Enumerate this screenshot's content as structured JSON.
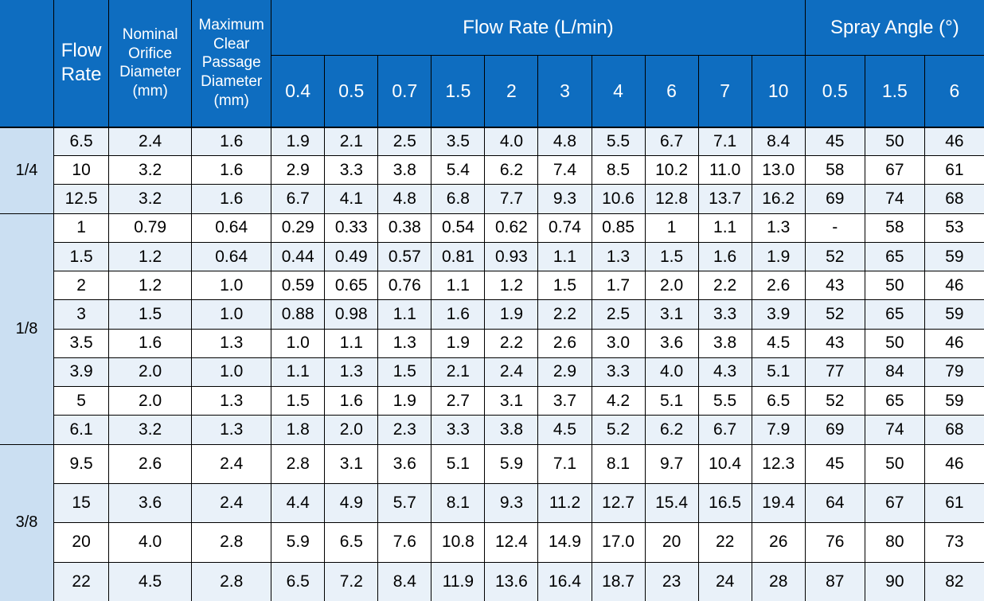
{
  "colors": {
    "header_bg": "#0E6DC0",
    "header_text": "#FFFFFF",
    "row_alt_bg": "#E9F1F9",
    "row_plain_bg": "#FFFFFF",
    "group_col_bg": "#CBDFF2",
    "grid_line": "#000000",
    "data_text": "#000000"
  },
  "header": {
    "corner": "",
    "flow_rate_col": "Flow Rate",
    "nominal_orifice_col": "Nominal Orifice Diameter (mm)",
    "max_clear_col": "Maximum Clear Passage Diameter (mm)",
    "flow_rate_group": "Flow Rate (L/min)",
    "flow_subcols": [
      "0.4",
      "0.5",
      "0.7",
      "1.5",
      "2",
      "3",
      "4",
      "6",
      "7",
      "10"
    ],
    "spray_angle_group": "Spray Angle (°)",
    "spray_subcols": [
      "0.5",
      "1.5",
      "6"
    ]
  },
  "groups": [
    {
      "label": "1/4",
      "rows": [
        {
          "flow_rate": "6.5",
          "nominal": "2.4",
          "max_clear": "1.6",
          "flow": [
            "1.9",
            "2.1",
            "2.5",
            "3.5",
            "4.0",
            "4.8",
            "5.5",
            "6.7",
            "7.1",
            "8.4"
          ],
          "spray": [
            "45",
            "50",
            "46"
          ]
        },
        {
          "flow_rate": "10",
          "nominal": "3.2",
          "max_clear": "1.6",
          "flow": [
            "2.9",
            "3.3",
            "3.8",
            "5.4",
            "6.2",
            "7.4",
            "8.5",
            "10.2",
            "11.0",
            "13.0"
          ],
          "spray": [
            "58",
            "67",
            "61"
          ]
        },
        {
          "flow_rate": "12.5",
          "nominal": "3.2",
          "max_clear": "1.6",
          "flow": [
            "6.7",
            "4.1",
            "4.8",
            "6.8",
            "7.7",
            "9.3",
            "10.6",
            "12.8",
            "13.7",
            "16.2"
          ],
          "spray": [
            "69",
            "74",
            "68"
          ]
        }
      ]
    },
    {
      "label": "1/8",
      "rows": [
        {
          "flow_rate": "1",
          "nominal": "0.79",
          "max_clear": "0.64",
          "flow": [
            "0.29",
            "0.33",
            "0.38",
            "0.54",
            "0.62",
            "0.74",
            "0.85",
            "1",
            "1.1",
            "1.3"
          ],
          "spray": [
            "-",
            "58",
            "53"
          ]
        },
        {
          "flow_rate": "1.5",
          "nominal": "1.2",
          "max_clear": "0.64",
          "flow": [
            "0.44",
            "0.49",
            "0.57",
            "0.81",
            "0.93",
            "1.1",
            "1.3",
            "1.5",
            "1.6",
            "1.9"
          ],
          "spray": [
            "52",
            "65",
            "59"
          ]
        },
        {
          "flow_rate": "2",
          "nominal": "1.2",
          "max_clear": "1.0",
          "flow": [
            "0.59",
            "0.65",
            "0.76",
            "1.1",
            "1.2",
            "1.5",
            "1.7",
            "2.0",
            "2.2",
            "2.6"
          ],
          "spray": [
            "43",
            "50",
            "46"
          ]
        },
        {
          "flow_rate": "3",
          "nominal": "1.5",
          "max_clear": "1.0",
          "flow": [
            "0.88",
            "0.98",
            "1.1",
            "1.6",
            "1.9",
            "2.2",
            "2.5",
            "3.1",
            "3.3",
            "3.9"
          ],
          "spray": [
            "52",
            "65",
            "59"
          ]
        },
        {
          "flow_rate": "3.5",
          "nominal": "1.6",
          "max_clear": "1.3",
          "flow": [
            "1.0",
            "1.1",
            "1.3",
            "1.9",
            "2.2",
            "2.6",
            "3.0",
            "3.6",
            "3.8",
            "4.5"
          ],
          "spray": [
            "43",
            "50",
            "46"
          ]
        },
        {
          "flow_rate": "3.9",
          "nominal": "2.0",
          "max_clear": "1.0",
          "flow": [
            "1.1",
            "1.3",
            "1.5",
            "2.1",
            "2.4",
            "2.9",
            "3.3",
            "4.0",
            "4.3",
            "5.1"
          ],
          "spray": [
            "77",
            "84",
            "79"
          ]
        },
        {
          "flow_rate": "5",
          "nominal": "2.0",
          "max_clear": "1.3",
          "flow": [
            "1.5",
            "1.6",
            "1.9",
            "2.7",
            "3.1",
            "3.7",
            "4.2",
            "5.1",
            "5.5",
            "6.5"
          ],
          "spray": [
            "52",
            "65",
            "59"
          ]
        },
        {
          "flow_rate": "6.1",
          "nominal": "3.2",
          "max_clear": "1.3",
          "flow": [
            "1.8",
            "2.0",
            "2.3",
            "3.3",
            "3.8",
            "4.5",
            "5.2",
            "6.2",
            "6.7",
            "7.9"
          ],
          "spray": [
            "69",
            "74",
            "68"
          ]
        }
      ]
    },
    {
      "label": "3/8",
      "rows": [
        {
          "flow_rate": "9.5",
          "nominal": "2.6",
          "max_clear": "2.4",
          "flow": [
            "2.8",
            "3.1",
            "3.6",
            "5.1",
            "5.9",
            "7.1",
            "8.1",
            "9.7",
            "10.4",
            "12.3"
          ],
          "spray": [
            "45",
            "50",
            "46"
          ]
        },
        {
          "flow_rate": "15",
          "nominal": "3.6",
          "max_clear": "2.4",
          "flow": [
            "4.4",
            "4.9",
            "5.7",
            "8.1",
            "9.3",
            "11.2",
            "12.7",
            "15.4",
            "16.5",
            "19.4"
          ],
          "spray": [
            "64",
            "67",
            "61"
          ]
        },
        {
          "flow_rate": "20",
          "nominal": "4.0",
          "max_clear": "2.8",
          "flow": [
            "5.9",
            "6.5",
            "7.6",
            "10.8",
            "12.4",
            "14.9",
            "17.0",
            "20",
            "22",
            "26"
          ],
          "spray": [
            "76",
            "80",
            "73"
          ]
        },
        {
          "flow_rate": "22",
          "nominal": "4.5",
          "max_clear": "2.8",
          "flow": [
            "6.5",
            "7.2",
            "8.4",
            "11.9",
            "13.6",
            "16.4",
            "18.7",
            "23",
            "24",
            "28"
          ],
          "spray": [
            "87",
            "90",
            "82"
          ]
        }
      ]
    }
  ]
}
